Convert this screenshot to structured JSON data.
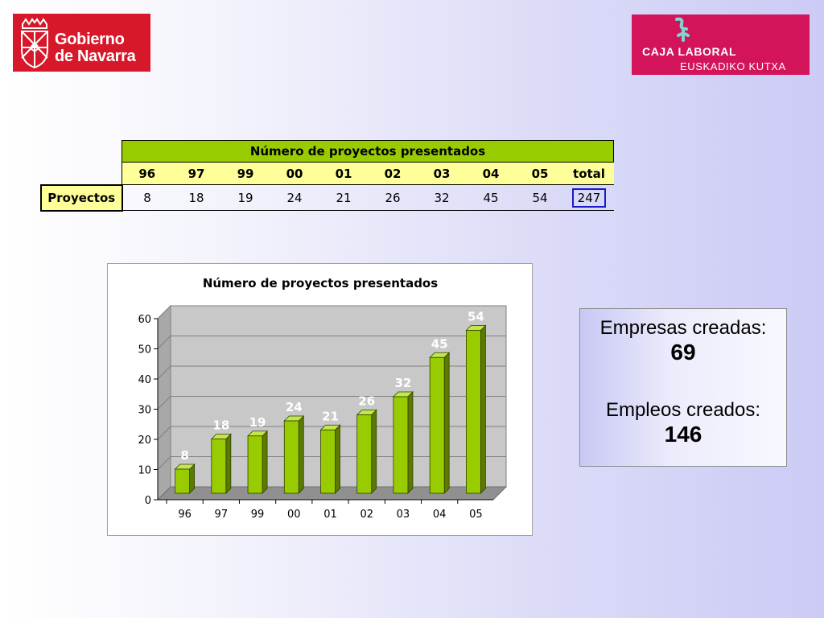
{
  "logos": {
    "gobierno": {
      "line1": "Gobierno",
      "line2": "de Navarra",
      "color": "#d7182a"
    },
    "caja": {
      "line1": "CAJA LABORAL",
      "line2": "EUSKADIKO KUTXA",
      "color": "#d4145a"
    }
  },
  "table": {
    "title": "Número de proyectos presentados",
    "years": [
      "96",
      "97",
      "99",
      "00",
      "01",
      "02",
      "03",
      "04",
      "05"
    ],
    "total_label": "total",
    "row_label": "Proyectos",
    "values": [
      "8",
      "18",
      "19",
      "24",
      "21",
      "26",
      "32",
      "45",
      "54"
    ],
    "total": "247"
  },
  "chart_data": {
    "type": "bar",
    "title": "Número de proyectos presentados",
    "categories": [
      "96",
      "97",
      "99",
      "00",
      "01",
      "02",
      "03",
      "04",
      "05"
    ],
    "values": [
      8,
      18,
      19,
      24,
      21,
      26,
      32,
      45,
      54
    ],
    "ylim": [
      0,
      60
    ],
    "yticks": [
      0,
      10,
      20,
      30,
      40,
      50,
      60
    ],
    "xlabel": "",
    "ylabel": "",
    "grid": true,
    "bar_color": "#99cc00",
    "data_labels": true
  },
  "stats": {
    "empresas_label": "Empresas creadas:",
    "empresas_value": "69",
    "empleos_label": "Empleos creados:",
    "empleos_value": "146"
  }
}
